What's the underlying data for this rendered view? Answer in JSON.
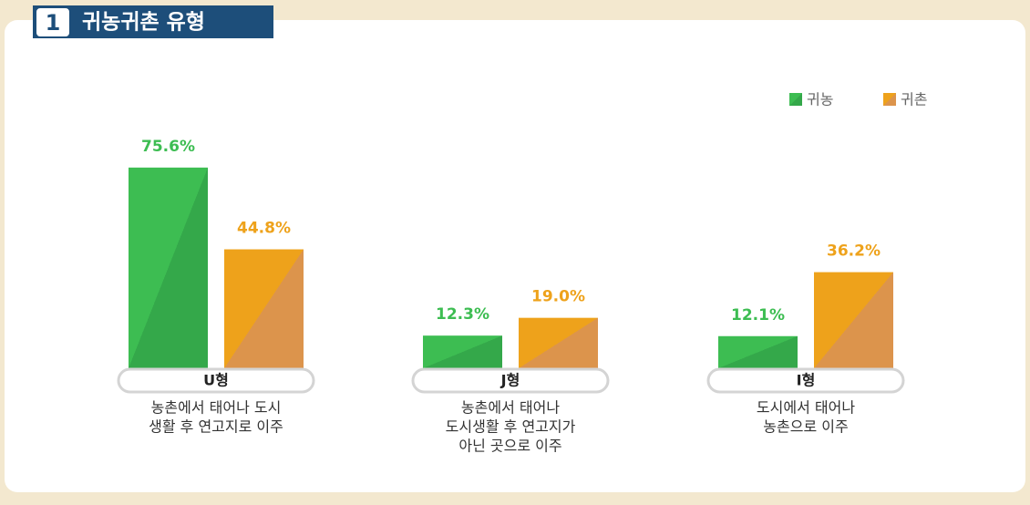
{
  "chart_data": {
    "type": "bar",
    "section_number": "1",
    "title": "귀농귀촌 유형",
    "categories": [
      "U형",
      "J형",
      "I형"
    ],
    "descriptions": [
      [
        "농촌에서 태어나 도시",
        "생활 후 연고지로 이주"
      ],
      [
        "농촌에서 태어나",
        "도시생활 후 연고지가",
        "아닌 곳으로 이주"
      ],
      [
        "도시에서 태어나",
        "농촌으로 이주"
      ]
    ],
    "series": [
      {
        "name": "귀농",
        "color": "#3dbd52",
        "shade": "#34a84a",
        "values": [
          75.6,
          12.3,
          12.1
        ],
        "value_labels": [
          "75.6%",
          "12.3%",
          "12.1%"
        ]
      },
      {
        "name": "귀촌",
        "color": "#eea21b",
        "shade": "#dc944c",
        "values": [
          44.8,
          19.0,
          36.2
        ],
        "value_labels": [
          "44.8%",
          "19.0%",
          "36.2%"
        ]
      }
    ],
    "ylim": [
      0,
      80
    ],
    "grid": false,
    "legend": "top-right"
  }
}
